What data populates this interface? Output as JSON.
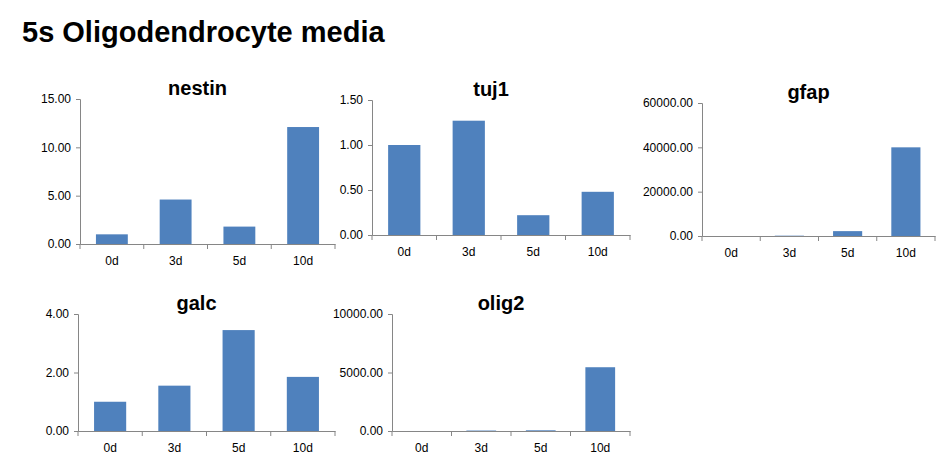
{
  "title": "5s Oligodendrocyte media",
  "chart_data": [
    {
      "type": "bar",
      "title": "nestin",
      "categories": [
        "0d",
        "3d",
        "5d",
        "10d"
      ],
      "values": [
        1.0,
        4.6,
        1.8,
        12.1
      ],
      "color": "#4f81bd",
      "ylim": [
        0,
        15
      ],
      "yticks": [
        {
          "value": 0,
          "label": "0.00"
        },
        {
          "value": 5,
          "label": "5.00"
        },
        {
          "value": 10,
          "label": "10.00"
        },
        {
          "value": 15,
          "label": "15.00"
        }
      ]
    },
    {
      "type": "bar",
      "title": "tuj1",
      "categories": [
        "0d",
        "3d",
        "5d",
        "10d"
      ],
      "values": [
        1.0,
        1.27,
        0.22,
        0.48
      ],
      "color": "#4f81bd",
      "ylim": [
        0,
        1.5
      ],
      "yticks": [
        {
          "value": 0,
          "label": "0.00"
        },
        {
          "value": 0.5,
          "label": "0.50"
        },
        {
          "value": 1,
          "label": "1.00"
        },
        {
          "value": 1.5,
          "label": "1.50"
        }
      ]
    },
    {
      "type": "bar",
      "title": "gfap",
      "categories": [
        "0d",
        "3d",
        "5d",
        "10d"
      ],
      "values": [
        1,
        150,
        2200,
        40000
      ],
      "color": "#4f81bd",
      "ylim": [
        0,
        60000
      ],
      "yticks": [
        {
          "value": 0,
          "label": "0.00"
        },
        {
          "value": 20000,
          "label": "20000.00"
        },
        {
          "value": 40000,
          "label": "40000.00"
        },
        {
          "value": 60000,
          "label": "60000.00"
        }
      ]
    },
    {
      "type": "bar",
      "title": "galc",
      "categories": [
        "0d",
        "3d",
        "5d",
        "10d"
      ],
      "values": [
        1.0,
        1.55,
        3.45,
        1.85
      ],
      "color": "#4f81bd",
      "ylim": [
        0,
        4
      ],
      "yticks": [
        {
          "value": 0,
          "label": "0.00"
        },
        {
          "value": 2,
          "label": "2.00"
        },
        {
          "value": 4,
          "label": "4.00"
        }
      ]
    },
    {
      "type": "bar",
      "title": "olig2",
      "categories": [
        "0d",
        "3d",
        "5d",
        "10d"
      ],
      "values": [
        1,
        40,
        60,
        5450
      ],
      "color": "#4f81bd",
      "ylim": [
        0,
        10000
      ],
      "yticks": [
        {
          "value": 0,
          "label": "0.00"
        },
        {
          "value": 5000,
          "label": "5000.00"
        },
        {
          "value": 10000,
          "label": "10000.00"
        }
      ]
    }
  ]
}
